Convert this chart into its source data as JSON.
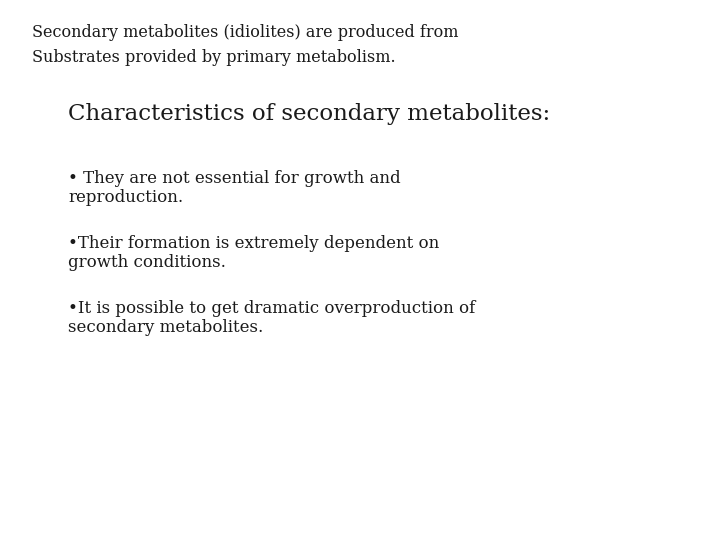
{
  "background_color": "#ffffff",
  "intro_line1": "Secondary metabolites (idiolites) are produced from",
  "intro_line2": "Substrates provided by primary metabolism.",
  "heading": "Characteristics of secondary metabolites:",
  "bullet1_line1": "• They are not essential for growth and",
  "bullet1_line2": "reproduction.",
  "bullet2_line1": "•Their formation is extremely dependent on",
  "bullet2_line2": "growth conditions.",
  "bullet3_line1": "•It is possible to get dramatic overproduction of",
  "bullet3_line2": "secondary metabolites.",
  "intro_fontsize": 11.5,
  "heading_fontsize": 16.5,
  "bullet_fontsize": 12.0,
  "text_color": "#1a1a1a",
  "font_family": "serif"
}
